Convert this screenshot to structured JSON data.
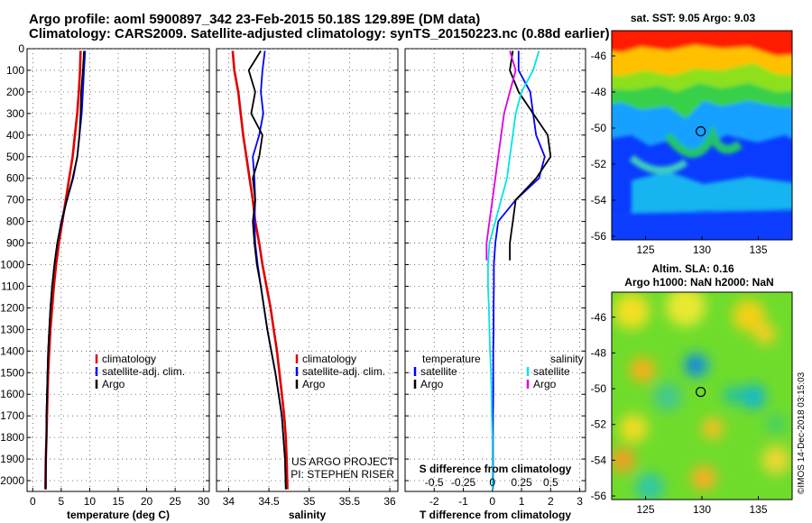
{
  "header": {
    "line1": "Argo profile: aoml 5900897_342 23-Feb-2015 50.18S 129.89E (DM data)",
    "line2": "Climatology: CARS2009. Satellite-adjusted climatology: synTS_20150223.nc (0.88d earlier)"
  },
  "colors": {
    "climatology": "#e00000",
    "satellite": "#0000ff",
    "argo": "#000000",
    "sal_satellite": "#00e5e5",
    "sal_argo": "#e000e0"
  },
  "chart_data": [
    {
      "type": "line",
      "xlabel": "temperature (deg C)",
      "xlim": [
        -1,
        31
      ],
      "xticks": [
        0,
        5,
        10,
        15,
        20,
        25,
        30
      ],
      "ylim": [
        0,
        2050
      ],
      "yticks": [
        0,
        100,
        200,
        300,
        400,
        500,
        600,
        700,
        800,
        900,
        1000,
        1100,
        1200,
        1300,
        1400,
        1500,
        1600,
        1700,
        1800,
        1900,
        2000
      ],
      "grid": true,
      "legend_position": "lower-right",
      "legend": [
        "climatology",
        "satellite-adj. clim.",
        "Argo"
      ],
      "series": [
        {
          "name": "climatology",
          "key": "climatology",
          "x": [
            8.4,
            8.3,
            8.1,
            7.8,
            7.4,
            7.0,
            6.4,
            5.8,
            5.2,
            4.6,
            4.1,
            3.7,
            3.4,
            3.1,
            2.9,
            2.7,
            2.6,
            2.5,
            2.4,
            2.3,
            2.2
          ],
          "y": [
            10,
            100,
            200,
            300,
            400,
            500,
            600,
            700,
            800,
            900,
            1000,
            1100,
            1200,
            1300,
            1400,
            1500,
            1600,
            1700,
            1800,
            1900,
            2040
          ]
        },
        {
          "name": "satellite-adj. clim.",
          "key": "satellite",
          "x": [
            9.2,
            9.0,
            8.8,
            8.6,
            8.2,
            7.8,
            7.1,
            6.0,
            5.0,
            4.3,
            3.8,
            3.4,
            3.1,
            2.9,
            2.7,
            2.6,
            2.5,
            2.4,
            2.4,
            2.3,
            2.3
          ],
          "y": [
            10,
            100,
            200,
            300,
            400,
            500,
            600,
            700,
            800,
            900,
            1000,
            1100,
            1200,
            1300,
            1400,
            1500,
            1600,
            1700,
            1800,
            1900,
            2040
          ]
        },
        {
          "name": "Argo",
          "key": "argo",
          "x": [
            9.0,
            8.8,
            8.5,
            8.4,
            8.2,
            7.8,
            7.0,
            6.0,
            5.1,
            4.3,
            3.8,
            3.4,
            3.1,
            2.9,
            2.7,
            2.6,
            2.5,
            2.4,
            2.4,
            2.3,
            2.3
          ],
          "y": [
            10,
            100,
            200,
            300,
            400,
            500,
            600,
            700,
            800,
            900,
            1000,
            1100,
            1200,
            1300,
            1400,
            1500,
            1600,
            1700,
            1800,
            1900,
            2040
          ]
        }
      ]
    },
    {
      "type": "line",
      "xlabel": "salinity",
      "xlim": [
        33.85,
        36.1
      ],
      "xticks": [
        34,
        34.5,
        35,
        35.5,
        36
      ],
      "xticklabels": [
        "34",
        "34.5",
        "35",
        "35.5",
        "36"
      ],
      "ylim": [
        0,
        2050
      ],
      "grid": true,
      "legend_position": "lower-right",
      "legend": [
        "climatology",
        "satellite-adj. clim.",
        "Argo"
      ],
      "annotation": [
        "US ARGO PROJECT",
        "PI: STEPHEN RISER"
      ],
      "series": [
        {
          "name": "climatology",
          "key": "climatology",
          "x": [
            34.05,
            34.07,
            34.12,
            34.15,
            34.18,
            34.22,
            34.26,
            34.3,
            34.33,
            34.38,
            34.42,
            34.47,
            34.52,
            34.56,
            34.6,
            34.63,
            34.66,
            34.69,
            34.71,
            34.72,
            34.73
          ],
          "y": [
            10,
            100,
            200,
            300,
            400,
            500,
            600,
            700,
            800,
            900,
            1000,
            1100,
            1200,
            1300,
            1400,
            1500,
            1600,
            1700,
            1800,
            1900,
            2040
          ]
        },
        {
          "name": "satellite-adj. clim.",
          "key": "satellite",
          "x": [
            34.45,
            34.42,
            34.4,
            34.43,
            34.38,
            34.3,
            34.32,
            34.33,
            34.32,
            34.33,
            34.36,
            34.4,
            34.44,
            34.48,
            34.53,
            34.58,
            34.62,
            34.66,
            34.68,
            34.7,
            34.71
          ],
          "y": [
            10,
            100,
            200,
            300,
            400,
            500,
            600,
            700,
            800,
            900,
            1000,
            1100,
            1200,
            1300,
            1400,
            1500,
            1600,
            1700,
            1800,
            1900,
            2040
          ]
        },
        {
          "name": "Argo",
          "key": "argo",
          "x": [
            34.4,
            34.25,
            34.33,
            34.28,
            34.42,
            34.38,
            34.3,
            34.33,
            34.3,
            34.32,
            34.35,
            34.4,
            34.44,
            34.48,
            34.53,
            34.58,
            34.62,
            34.66,
            34.68,
            34.7,
            34.71
          ],
          "y": [
            10,
            100,
            200,
            300,
            400,
            500,
            600,
            700,
            800,
            900,
            1000,
            1100,
            1200,
            1300,
            1400,
            1500,
            1600,
            1700,
            1800,
            1900,
            2040
          ]
        }
      ]
    },
    {
      "type": "line",
      "xlabel": "T difference from climatology",
      "xlim": [
        -3,
        3.2
      ],
      "xticks": [
        -2,
        -1,
        0,
        1,
        2,
        3
      ],
      "top_axis_label": "S difference from climatology",
      "top_ticks": [
        -0.5,
        -0.25,
        0,
        0.25,
        0.5
      ],
      "top_ticklabels": [
        "-0.5",
        "-0.25",
        "0",
        "0.25",
        "0.5"
      ],
      "ylim": [
        0,
        2050
      ],
      "grid": true,
      "legend_position": "lower",
      "legend_groups": [
        {
          "title": "temperature",
          "items": [
            "satellite",
            "Argo"
          ]
        },
        {
          "title": "salinity",
          "items": [
            "satellite",
            "Argo"
          ]
        }
      ],
      "series": [
        {
          "name": "satellite",
          "group": "temperature",
          "key": "satellite",
          "x": [
            0.9,
            0.9,
            1.3,
            1.4,
            1.5,
            1.8,
            1.6,
            0.8,
            0.2,
            0.1,
            0.05,
            0.05,
            0.04,
            0.04,
            0.03,
            0.03,
            0.03,
            0.02,
            0.02,
            0.02
          ],
          "y": [
            10,
            100,
            200,
            300,
            400,
            500,
            600,
            700,
            800,
            900,
            1000,
            1100,
            1200,
            1300,
            1400,
            1500,
            1600,
            1700,
            1800,
            2040
          ]
        },
        {
          "name": "Argo",
          "group": "temperature",
          "key": "argo",
          "x": [
            0.7,
            0.6,
            0.9,
            1.4,
            1.9,
            2.0,
            1.5,
            0.8,
            0.7,
            0.6,
            0.6
          ],
          "y": [
            10,
            100,
            200,
            300,
            400,
            500,
            600,
            700,
            800,
            900,
            980
          ]
        },
        {
          "name": "satellite",
          "group": "salinity",
          "key": "sal_satellite",
          "x": [
            1.6,
            1.4,
            1.0,
            0.8,
            0.7,
            0.6,
            0.5,
            0.3,
            0.1,
            -0.1,
            -0.15,
            -0.15,
            -0.12,
            -0.1,
            -0.08,
            -0.05,
            -0.03,
            -0.02,
            0.0,
            0.0
          ],
          "y": [
            10,
            100,
            200,
            300,
            400,
            500,
            600,
            700,
            800,
            900,
            1000,
            1100,
            1200,
            1300,
            1400,
            1500,
            1600,
            1700,
            1800,
            2040
          ]
        },
        {
          "name": "Argo",
          "group": "salinity",
          "key": "sal_argo",
          "x": [
            0.6,
            0.8,
            0.6,
            0.4,
            0.3,
            0.2,
            0.1,
            0.0,
            -0.1,
            -0.2,
            -0.2
          ],
          "y": [
            10,
            100,
            200,
            300,
            400,
            500,
            600,
            700,
            800,
            900,
            980
          ]
        }
      ]
    },
    {
      "type": "heatmap",
      "title": "sat. SST: 9.05 Argo: 9.03",
      "xticks": [
        125,
        130,
        135
      ],
      "yticks": [
        -46,
        -48,
        -50,
        -52,
        -54,
        -56
      ],
      "xlim": [
        122,
        138
      ],
      "ylim": [
        -56.2,
        -44.6
      ],
      "marker": [
        129.89,
        -50.18
      ]
    },
    {
      "type": "heatmap",
      "title": "Altim. SLA: 0.16",
      "subtitle": "Argo h1000: NaN h2000: NaN",
      "xticks": [
        125,
        130,
        135
      ],
      "yticks": [
        -46,
        -48,
        -50,
        -52,
        -54,
        -56
      ],
      "xlim": [
        122,
        138
      ],
      "ylim": [
        -56.2,
        -44.6
      ],
      "marker": [
        129.89,
        -50.18
      ]
    }
  ],
  "side_note": "©IMOS 14-Dec-2018 03:15:03"
}
